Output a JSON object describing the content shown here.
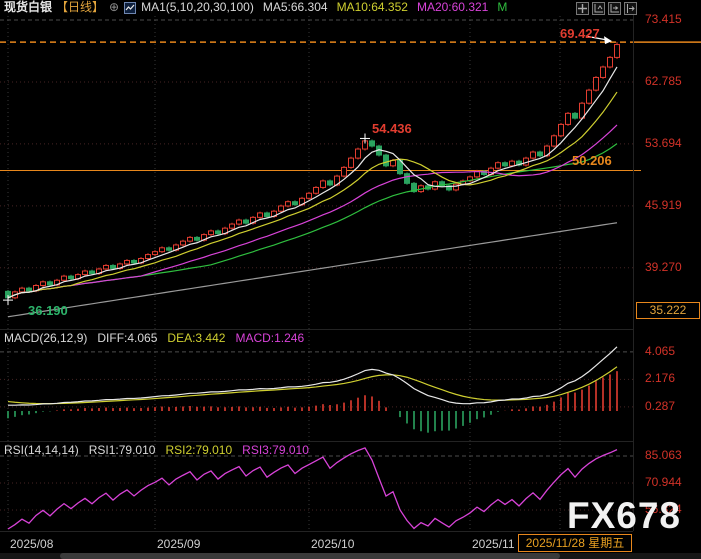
{
  "header": {
    "symbol": "现货白银",
    "period": "【日线】",
    "add_icon": "⊕",
    "ma_settings": "MA1(5,10,20,30,100)",
    "ma5": "MA5:66.304",
    "ma10": "MA10:64.352",
    "ma20": "MA20:60.321",
    "ma30_truncated": "M"
  },
  "main_chart": {
    "y_axis_labels": [
      "73.415",
      "62.785",
      "53.694",
      "45.919",
      "39.270"
    ],
    "y_axis_values": [
      73.415,
      62.785,
      53.694,
      45.919,
      39.27
    ],
    "boxed_bottom_price": "35.222",
    "current_price_label": "69.427",
    "current_price": 69.427,
    "support_line_label": "50.206",
    "support_line": 50.206,
    "peak_label": "54.436",
    "low_label": "36.190"
  },
  "macd_pane": {
    "title": "MACD(26,12,9)",
    "diff_label": "DIFF:4.065",
    "dea_label": "DEA:3.442",
    "macd_label": "MACD:1.246",
    "y_axis_labels": [
      "4.065",
      "2.176",
      "0.287"
    ],
    "y_axis_values": [
      4.065,
      2.176,
      0.287
    ]
  },
  "rsi_pane": {
    "title": "RSI(14,14,14)",
    "rsi1_label": "RSI1:79.010",
    "rsi2_label": "RSI2:79.010",
    "rsi3_label": "RSI3:79.010",
    "y_axis_labels": [
      "85.063",
      "70.944",
      "56.824"
    ],
    "y_axis_values": [
      85.063,
      70.944,
      56.824
    ]
  },
  "x_axis": {
    "month_labels": [
      "2025/08",
      "2025/09",
      "2025/10",
      "2025/11"
    ],
    "date_box": "2025/11/28 星期五"
  },
  "watermark": "FX678",
  "colors": {
    "up": "#e23d30",
    "down": "#2aa35f",
    "ma5": "#e8e8e8",
    "ma10": "#cfcf30",
    "ma20": "#d843d8",
    "ma30": "#2fbf3f",
    "ma100": "#9a9a9a",
    "axis_text": "#d23228",
    "orange": "#e8871c",
    "gold": "#e2a43c",
    "rsi_line": "#d843d8",
    "grid_red": "#462424",
    "grid_gray": "#383838"
  },
  "chart_data": {
    "type": "candlestick+macd+rsi",
    "symbol": "现货白银 (Spot Silver)",
    "interval": "daily",
    "x_range": [
      "2025/08/01",
      "2025/11/28"
    ],
    "price_scale": "log",
    "y_axis_ticks": [
      73.415,
      62.785,
      53.694,
      45.919,
      39.27,
      35.222
    ],
    "first_open": 37.0,
    "closes": [
      36.4,
      36.95,
      37.3,
      37.05,
      37.55,
      37.9,
      37.6,
      38.05,
      38.45,
      38.2,
      38.6,
      38.95,
      38.7,
      39.15,
      39.5,
      39.2,
      39.65,
      40.0,
      39.75,
      40.2,
      40.6,
      40.9,
      41.3,
      41.05,
      41.6,
      42.0,
      42.4,
      42.1,
      42.7,
      43.1,
      42.8,
      43.4,
      43.85,
      44.3,
      43.95,
      44.6,
      45.1,
      44.7,
      45.3,
      45.9,
      46.4,
      46.05,
      46.8,
      47.4,
      48.1,
      48.9,
      48.4,
      49.5,
      50.6,
      51.8,
      53.0,
      54.1,
      53.4,
      52.2,
      50.8,
      51.5,
      49.8,
      48.6,
      47.6,
      48.3,
      47.9,
      48.8,
      48.3,
      47.8,
      48.5,
      48.9,
      49.4,
      50.1,
      49.7,
      50.5,
      51.2,
      50.8,
      51.4,
      50.9,
      51.8,
      52.6,
      52.1,
      53.4,
      54.8,
      56.4,
      58.0,
      57.3,
      59.5,
      61.5,
      63.5,
      65.2,
      66.8,
      69.0
    ],
    "month_start_indices": [
      0,
      21,
      43,
      66
    ],
    "markers": {
      "low": {
        "index": 0,
        "value": 36.19
      },
      "peak": {
        "index": 51,
        "value": 54.436
      },
      "last_high": {
        "index": 87,
        "value": 69.427
      },
      "current_price_line": 69.427,
      "support_line": 50.206
    },
    "ma_periods": [
      5,
      10,
      20,
      30,
      100
    ],
    "ma100_approx": {
      "start": 34.7,
      "end": 44.0
    },
    "macd_params": [
      26,
      12,
      9
    ],
    "rsi_params": [
      14,
      14,
      14
    ],
    "indicator_last_values": {
      "ma5": 66.304,
      "ma10": 64.352,
      "ma20": 60.321,
      "diff": 4.065,
      "dea": 3.442,
      "macd": 1.246,
      "rsi1": 79.01,
      "rsi2": 79.01,
      "rsi3": 79.01
    }
  }
}
